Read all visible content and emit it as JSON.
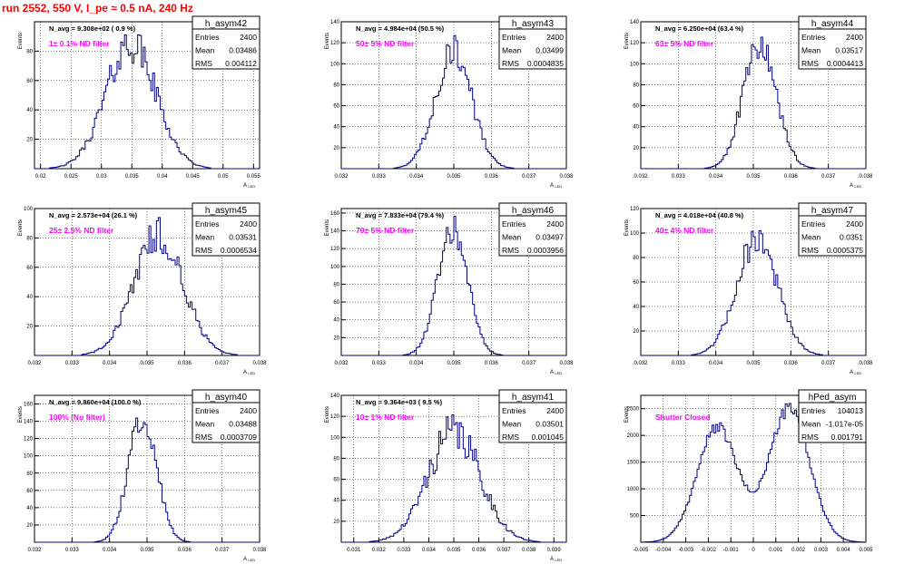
{
  "page_title": "run 2552,   550 V, I_pe ≈ 0.5 nA, 240 Hz",
  "colors": {
    "line": "#000080",
    "grid": "#000000",
    "annotation": "#ff00ff",
    "title": "#ff0000",
    "frame": "#000000"
  },
  "stat_labels": {
    "entries": "Entries",
    "mean": "Mean",
    "rms": "RMS"
  },
  "chart_data": [
    {
      "type": "histogram",
      "name": "h_asym42",
      "navg": "N_avg = 9.308e+02 ( 0.9 %)",
      "filter": "1± 0.1% ND filter",
      "entries": "2400",
      "mean_text": "0.03486",
      "rms_text": "0.004112",
      "xlabel": "A",
      "xlabel_sub": "LED",
      "ylabel": "Events",
      "xlim": [
        0.019,
        0.056
      ],
      "ylim": [
        0,
        100
      ],
      "xticks": [
        0.02,
        0.025,
        0.03,
        0.035,
        0.04,
        0.045,
        0.05,
        0.055
      ],
      "xticklabels": [
        "0.02",
        "0.025",
        "0.03",
        "0.035",
        "0.04",
        "0.045",
        "0.05",
        "0.055"
      ],
      "yticks": [
        20,
        40,
        60,
        80
      ],
      "mean": 0.03486,
      "sigma": 0.004112,
      "peak": 85,
      "noise": 0.16,
      "seed": 42
    },
    {
      "type": "histogram",
      "name": "h_asym43",
      "navg": "N_avg = 4.984e+04 (50.5 %)",
      "filter": "50± 5% ND filter",
      "entries": "2400",
      "mean_text": "0.03499",
      "rms_text": "0.0004835",
      "xlabel": "A",
      "xlabel_sub": "LED",
      "ylabel": "Events",
      "xlim": [
        0.032,
        0.038
      ],
      "ylim": [
        0,
        140
      ],
      "xticks": [
        0.032,
        0.033,
        0.034,
        0.035,
        0.036,
        0.037,
        0.038
      ],
      "xticklabels": [
        "0.032",
        "0.033",
        "0.034",
        "0.035",
        "0.036",
        "0.037",
        "0.038"
      ],
      "yticks": [
        20,
        40,
        60,
        80,
        100,
        120,
        140
      ],
      "mean": 0.03499,
      "sigma": 0.0004835,
      "peak": 112,
      "noise": 0.14,
      "seed": 43
    },
    {
      "type": "histogram",
      "name": "h_asym44",
      "navg": "N_avg = 6.250e+04 (63.4 %)",
      "filter": "63± 5% ND filter",
      "entries": "2400",
      "mean_text": "0.03517",
      "rms_text": "0.0004413",
      "xlabel": "A",
      "xlabel_sub": "LED",
      "ylabel": "Events",
      "xlim": [
        0.032,
        0.038
      ],
      "ylim": [
        0,
        140
      ],
      "xticks": [
        0.032,
        0.033,
        0.034,
        0.035,
        0.036,
        0.037,
        0.038
      ],
      "xticklabels": [
        "0.032",
        "0.033",
        "0.034",
        "0.035",
        "0.036",
        "0.037",
        "0.038"
      ],
      "yticks": [
        20,
        40,
        60,
        80,
        100,
        120,
        140
      ],
      "mean": 0.03517,
      "sigma": 0.0004413,
      "peak": 118,
      "noise": 0.14,
      "seed": 44
    },
    {
      "type": "histogram",
      "name": "h_asym45",
      "navg": "N_avg = 2.573e+04 (26.1 %)",
      "filter": "25± 2.5% ND filter",
      "entries": "2400",
      "mean_text": "0.03531",
      "rms_text": "0.0006534",
      "xlabel": "A",
      "xlabel_sub": "LED",
      "ylabel": "Events",
      "xlim": [
        0.032,
        0.038
      ],
      "ylim": [
        0,
        100
      ],
      "xticks": [
        0.032,
        0.033,
        0.034,
        0.035,
        0.036,
        0.037,
        0.038
      ],
      "xticklabels": [
        "0.032",
        "0.033",
        "0.034",
        "0.035",
        "0.036",
        "0.037",
        "0.038"
      ],
      "yticks": [
        20,
        40,
        60,
        80,
        100
      ],
      "mean": 0.03531,
      "sigma": 0.0006534,
      "peak": 82,
      "noise": 0.15,
      "seed": 45
    },
    {
      "type": "histogram",
      "name": "h_asym46",
      "navg": "N_avg = 7.833e+04 (79.4 %)",
      "filter": "79± 5% ND filter",
      "entries": "2400",
      "mean_text": "0.03497",
      "rms_text": "0.0003956",
      "xlabel": "A",
      "xlabel_sub": "LED",
      "ylabel": "Events",
      "xlim": [
        0.032,
        0.038
      ],
      "ylim": [
        0,
        165
      ],
      "xticks": [
        0.032,
        0.033,
        0.034,
        0.035,
        0.036,
        0.037,
        0.038
      ],
      "xticklabels": [
        "0.032",
        "0.033",
        "0.034",
        "0.035",
        "0.036",
        "0.037",
        "0.038"
      ],
      "yticks": [
        20,
        40,
        60,
        80,
        100,
        120,
        140,
        160
      ],
      "mean": 0.03497,
      "sigma": 0.0003956,
      "peak": 142,
      "noise": 0.13,
      "seed": 46
    },
    {
      "type": "histogram",
      "name": "h_asym47",
      "navg": "N_avg = 4.018e+04 (40.8 %)",
      "filter": "40± 4% ND filter",
      "entries": "2400",
      "mean_text": "0.0351",
      "rms_text": "0.0005375",
      "xlabel": "A",
      "xlabel_sub": "LED",
      "ylabel": "Events",
      "xlim": [
        0.032,
        0.038
      ],
      "ylim": [
        0,
        120
      ],
      "xticks": [
        0.032,
        0.033,
        0.034,
        0.035,
        0.036,
        0.037,
        0.038
      ],
      "xticklabels": [
        "0.032",
        "0.033",
        "0.034",
        "0.035",
        "0.036",
        "0.037",
        "0.038"
      ],
      "yticks": [
        20,
        40,
        60,
        80,
        100,
        120
      ],
      "mean": 0.0351,
      "sigma": 0.0005375,
      "peak": 96,
      "noise": 0.14,
      "seed": 47
    },
    {
      "type": "histogram",
      "name": "h_asym40",
      "navg": "N_avg = 9.860e+04 (100.0 %)",
      "filter": "100% (No filter)",
      "entries": "2400",
      "mean_text": "0.03488",
      "rms_text": "0.0003709",
      "xlabel": "A",
      "xlabel_sub": "LED",
      "ylabel": "Events",
      "xlim": [
        0.032,
        0.038
      ],
      "ylim": [
        0,
        170
      ],
      "xticks": [
        0.032,
        0.033,
        0.034,
        0.035,
        0.036,
        0.037,
        0.038
      ],
      "xticklabels": [
        "0.032",
        "0.033",
        "0.034",
        "0.035",
        "0.036",
        "0.037",
        "0.038"
      ],
      "yticks": [
        20,
        40,
        60,
        80,
        100,
        120,
        140,
        160
      ],
      "mean": 0.03488,
      "sigma": 0.0003709,
      "peak": 148,
      "noise": 0.12,
      "seed": 40
    },
    {
      "type": "histogram",
      "name": "h_asym41",
      "navg": "N_avg = 9.364e+03 ( 9.5 %)",
      "filter": "10± 1% ND filter",
      "entries": "2400",
      "mean_text": "0.03501",
      "rms_text": "0.001045",
      "xlabel": "A",
      "xlabel_sub": "LED",
      "ylabel": "Events",
      "xlim": [
        0.0305,
        0.0395
      ],
      "ylim": [
        0,
        140
      ],
      "xticks": [
        0.031,
        0.032,
        0.033,
        0.034,
        0.035,
        0.036,
        0.037,
        0.038,
        0.039
      ],
      "xticklabels": [
        "0.031",
        "0.032",
        "0.033",
        "0.034",
        "0.035",
        "0.036",
        "0.037",
        "0.038",
        "0.039"
      ],
      "yticks": [
        20,
        40,
        60,
        80,
        100,
        120,
        140
      ],
      "mean": 0.03501,
      "sigma": 0.001045,
      "peak": 105,
      "noise": 0.18,
      "seed": 41
    },
    {
      "type": "histogram",
      "name": "hPed_asym",
      "navg": "",
      "filter": "Shutter Closed",
      "entries": "104013",
      "mean_text": "-1.017e-05",
      "rms_text": "0.001791",
      "xlabel": "",
      "xlabel_sub": "",
      "ylabel": "Events",
      "xlim": [
        -0.005,
        0.005
      ],
      "ylim": [
        0,
        2750
      ],
      "xticks": [
        -0.005,
        -0.004,
        -0.003,
        -0.002,
        -0.001,
        0,
        0.001,
        0.002,
        0.003,
        0.004,
        0.005
      ],
      "xticklabels": [
        "-0.005",
        "-0.004",
        "-0.003",
        "-0.002",
        "-0.001",
        "0",
        "0.001",
        "0.002",
        "0.003",
        "0.004",
        "0.005"
      ],
      "yticks": [
        500,
        1000,
        1500,
        2000,
        2500
      ],
      "bimodal": true,
      "peaks": [
        [
          -0.0016,
          0.0009,
          2150
        ],
        [
          0.0016,
          0.0009,
          2500
        ]
      ],
      "noise": 0.05,
      "seed": 99
    }
  ]
}
